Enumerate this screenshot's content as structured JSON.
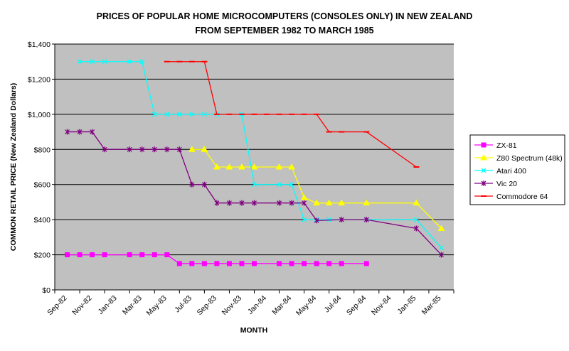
{
  "chart_data": {
    "type": "line",
    "title": "PRICES OF POPULAR HOME MICROCOMPUTERS (CONSOLES ONLY) IN NEW ZEALAND",
    "subtitle": "FROM SEPTEMBER 1982 TO MARCH 1985",
    "xlabel": "MONTH",
    "ylabel": "COMMON RETAIL PRICE (New Zealand Dollars)",
    "ylim": [
      0,
      1400
    ],
    "yticks": [
      0,
      200,
      400,
      600,
      800,
      1000,
      1200,
      1400
    ],
    "ytick_labels": [
      "$0",
      "$200",
      "$400",
      "$600",
      "$800",
      "$1,000",
      "$1,200",
      "$1,400"
    ],
    "xticks": [
      0,
      2,
      4,
      6,
      8,
      10,
      12,
      14,
      16,
      18,
      20,
      22,
      24,
      26,
      28,
      30
    ],
    "xtick_labels": [
      "Sep-82",
      "Nov-82",
      "Jan-83",
      "Mar-83",
      "May-83",
      "Jul-83",
      "Sep-83",
      "Nov-83",
      "Jan-84",
      "Mar-84",
      "May-84",
      "Jul-84",
      "Sep-84",
      "Nov-84",
      "Jan-85",
      "Mar-85"
    ],
    "grid": true,
    "legend_position": "right",
    "colors": {
      "plot_background": "#c0c0c0",
      "gridline": "#000000"
    },
    "series": [
      {
        "name": "ZX-81",
        "color": "#ff00ff",
        "marker": "square",
        "points": [
          [
            0,
            200
          ],
          [
            1,
            200
          ],
          [
            2,
            200
          ],
          [
            3,
            200
          ],
          [
            5,
            200
          ],
          [
            6,
            200
          ],
          [
            7,
            200
          ],
          [
            8,
            200
          ],
          [
            9,
            150
          ],
          [
            10,
            150
          ],
          [
            11,
            150
          ],
          [
            12,
            150
          ],
          [
            13,
            150
          ],
          [
            14,
            150
          ],
          [
            15,
            150
          ],
          [
            17,
            150
          ],
          [
            18,
            150
          ],
          [
            19,
            150
          ],
          [
            20,
            150
          ],
          [
            21,
            150
          ],
          [
            22,
            150
          ],
          [
            24,
            150
          ]
        ]
      },
      {
        "name": "Z80 Spectrum (48k)",
        "color": "#ffff00",
        "marker": "triangle",
        "points": [
          [
            10,
            800
          ],
          [
            11,
            800
          ],
          [
            12,
            700
          ],
          [
            13,
            700
          ],
          [
            14,
            700
          ],
          [
            15,
            700
          ],
          [
            17,
            700
          ],
          [
            18,
            700
          ],
          [
            19,
            525
          ],
          [
            20,
            495
          ],
          [
            21,
            495
          ],
          [
            22,
            495
          ],
          [
            24,
            495
          ],
          [
            28,
            495
          ],
          [
            30,
            350
          ]
        ]
      },
      {
        "name": "Atari 400",
        "color": "#00ffff",
        "marker": "x",
        "points": [
          [
            1,
            1300
          ],
          [
            2,
            1300
          ],
          [
            3,
            1300
          ],
          [
            5,
            1300
          ],
          [
            6,
            1300
          ],
          [
            7,
            1000
          ],
          [
            8,
            1000
          ],
          [
            9,
            1000
          ],
          [
            10,
            1000
          ],
          [
            11,
            1000
          ],
          [
            12,
            1000
          ],
          [
            14,
            1000
          ],
          [
            15,
            600
          ],
          [
            17,
            600
          ],
          [
            18,
            600
          ],
          [
            19,
            400
          ],
          [
            20,
            400
          ],
          [
            21,
            400
          ],
          [
            24,
            400
          ],
          [
            28,
            400
          ],
          [
            30,
            240
          ]
        ]
      },
      {
        "name": "Vic 20",
        "color": "#800080",
        "marker": "asterisk",
        "points": [
          [
            0,
            900
          ],
          [
            1,
            900
          ],
          [
            2,
            900
          ],
          [
            3,
            800
          ],
          [
            5,
            800
          ],
          [
            6,
            800
          ],
          [
            7,
            800
          ],
          [
            8,
            800
          ],
          [
            9,
            800
          ],
          [
            10,
            600
          ],
          [
            11,
            600
          ],
          [
            12,
            495
          ],
          [
            13,
            495
          ],
          [
            14,
            495
          ],
          [
            15,
            495
          ],
          [
            17,
            495
          ],
          [
            18,
            495
          ],
          [
            19,
            495
          ],
          [
            20,
            395
          ],
          [
            22,
            400
          ],
          [
            24,
            400
          ],
          [
            28,
            350
          ],
          [
            30,
            200
          ]
        ]
      },
      {
        "name": "Commodore 64",
        "color": "#ff0000",
        "marker": "dash",
        "points": [
          [
            8,
            1300
          ],
          [
            9,
            1300
          ],
          [
            10,
            1300
          ],
          [
            11,
            1300
          ],
          [
            12,
            1000
          ],
          [
            13,
            1000
          ],
          [
            14,
            1000
          ],
          [
            15,
            1000
          ],
          [
            16,
            1000
          ],
          [
            17,
            1000
          ],
          [
            18,
            1000
          ],
          [
            19,
            1000
          ],
          [
            20,
            1000
          ],
          [
            21,
            900
          ],
          [
            22,
            900
          ],
          [
            24,
            900
          ],
          [
            28,
            700
          ]
        ]
      }
    ]
  }
}
